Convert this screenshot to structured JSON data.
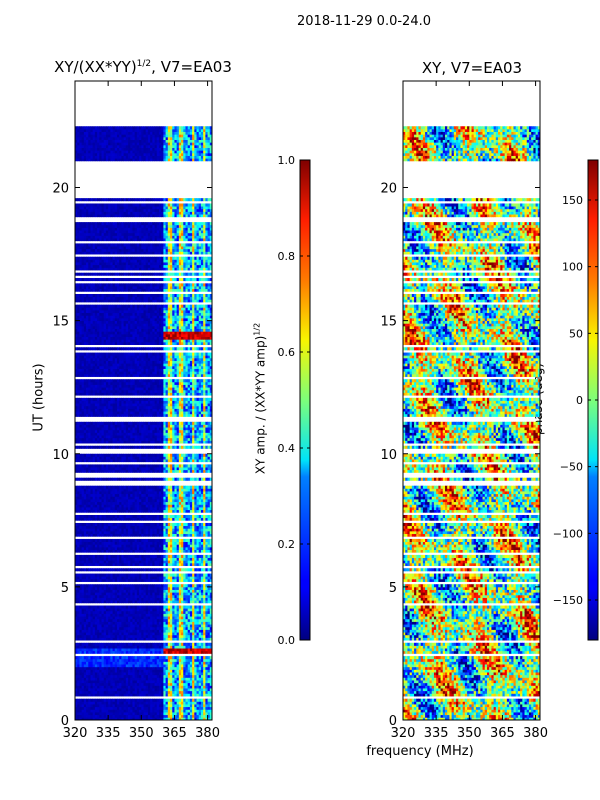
{
  "chart_data": [
    {
      "type": "heatmap",
      "title_prefix": "XY/(XX*YY)",
      "title_sup": "1/2",
      "title_suffix": ", V7=EA03",
      "xlabel": "",
      "ylabel": "UT (hours)",
      "xlim": [
        320,
        382
      ],
      "ylim": [
        0,
        24
      ],
      "xticks": [
        320,
        335,
        350,
        365,
        380
      ],
      "yticks": [
        0,
        5,
        10,
        15,
        20
      ],
      "colorbar": {
        "label_prefix": "XY amp. / (XX*YY amp)",
        "label_sup": "1/2",
        "range": [
          0.0,
          1.0
        ],
        "ticks": [
          0.0,
          0.2,
          0.4,
          0.6,
          0.8,
          1.0
        ],
        "tick_labels": [
          "0.0",
          "0.2",
          "0.4",
          "0.6",
          "0.8",
          "1.0"
        ],
        "colormap": "jet"
      },
      "notes": "Mostly low amplitude (~0.05) at 320-360 MHz; higher values 360-382 MHz with vertical channel stripes; peaks near 2.5 h and 14.5 h; data gaps (white) at ~19.7-21 h and ~22.5-24 h."
    },
    {
      "type": "heatmap",
      "title": "XY, V7=EA03",
      "xlabel": "frequency (MHz)",
      "ylabel": "",
      "xlim": [
        320,
        382
      ],
      "ylim": [
        0,
        24
      ],
      "xticks": [
        320,
        335,
        350,
        365,
        380
      ],
      "yticks": [
        0,
        5,
        10,
        15,
        20
      ],
      "colorbar": {
        "label": "phase (deg)",
        "range": [
          -180,
          180
        ],
        "ticks": [
          150,
          100,
          50,
          0,
          -50,
          -100,
          -150
        ],
        "tick_labels": [
          "150",
          "100",
          "50",
          "0",
          "−50",
          "−100",
          "−150"
        ],
        "colormap": "jet"
      },
      "notes": "Noisy phase values spanning -180 to 180 deg; same data gaps as left panel."
    }
  ],
  "figure": {
    "suptitle": "2018-11-29 0.0-24.0"
  }
}
